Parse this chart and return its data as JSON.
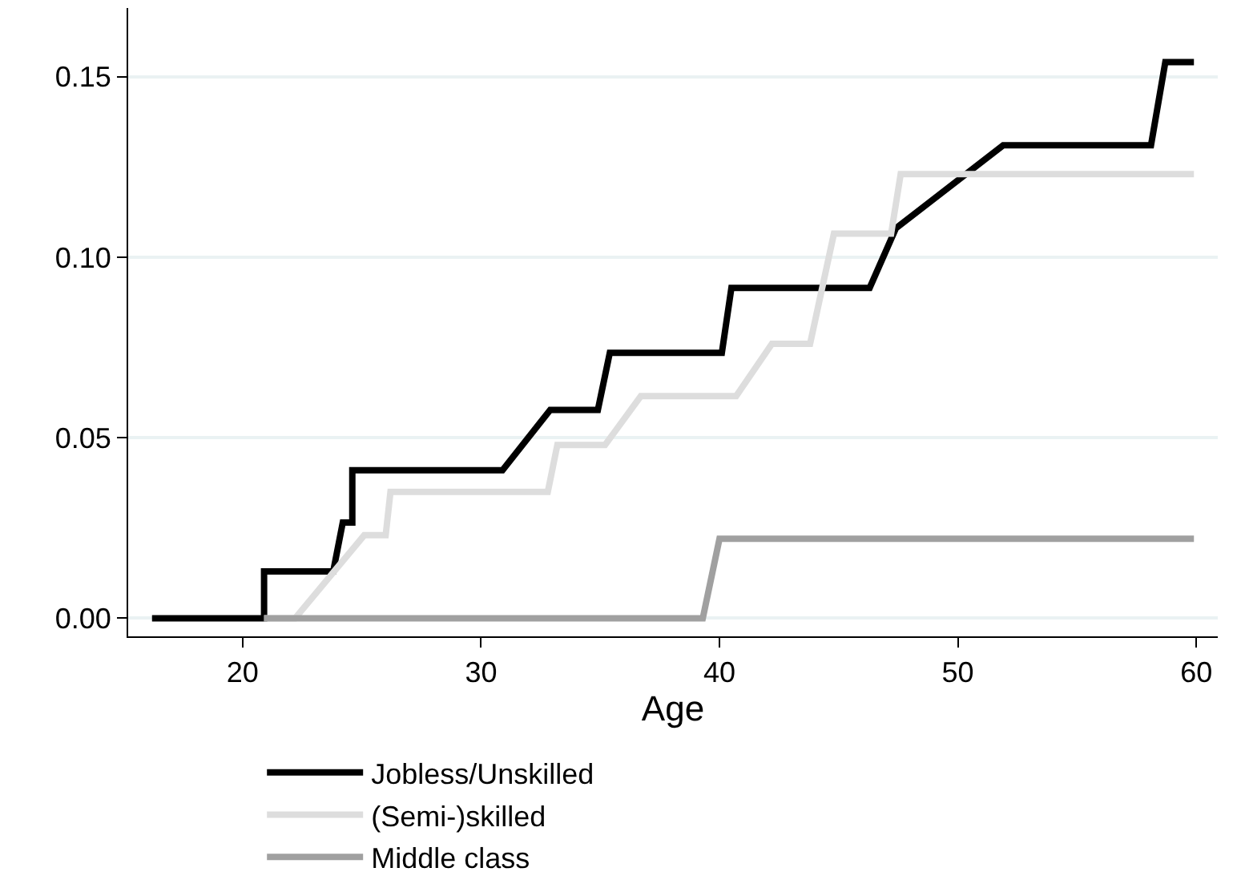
{
  "chart_data": {
    "type": "line",
    "xlabel": "Age",
    "xlim": [
      15.2,
      60.9
    ],
    "xticks": [
      20,
      30,
      40,
      50,
      60
    ],
    "ylim": [
      -0.005,
      0.169
    ],
    "yticks": [
      {
        "value": 0,
        "label": "0.00"
      },
      {
        "value": 0.05,
        "label": "0.05"
      },
      {
        "value": 0.1,
        "label": "0.10"
      },
      {
        "value": 0.15,
        "label": "0.15"
      }
    ],
    "grid": "y",
    "legend": "bottom",
    "marker": "none",
    "line_style": "solid",
    "series": [
      {
        "name": "Jobless/Unskilled",
        "color": "#000000",
        "x": [
          16.2,
          20.9,
          20.9,
          23.8,
          24.2,
          24.6,
          24.6,
          30.9,
          32.9,
          34.9,
          35.4,
          40.1,
          40.5,
          46.3,
          47.4,
          51.9,
          58.1,
          58.7,
          59.9
        ],
        "values": [
          0,
          0,
          0.013,
          0.013,
          0.0265,
          0.0265,
          0.041,
          0.041,
          0.0577,
          0.0577,
          0.0735,
          0.0735,
          0.0915,
          0.0915,
          0.108,
          0.131,
          0.131,
          0.154,
          0.154
        ]
      },
      {
        "name": "(Semi-)skilled",
        "color": "#dddddd",
        "x": [
          20.9,
          22.2,
          25.1,
          26.0,
          26.2,
          32.8,
          33.2,
          35.2,
          36.7,
          40.7,
          42.2,
          43.8,
          44.8,
          47.2,
          47.6,
          59.9
        ],
        "values": [
          0,
          0,
          0.023,
          0.023,
          0.035,
          0.035,
          0.048,
          0.048,
          0.0615,
          0.0615,
          0.076,
          0.076,
          0.1065,
          0.1065,
          0.123,
          0.123
        ]
      },
      {
        "name": "Middle class",
        "color": "#a0a0a0",
        "x": [
          20.9,
          39.3,
          40.0,
          59.9
        ],
        "values": [
          0,
          0,
          0.022,
          0.022
        ]
      }
    ]
  }
}
